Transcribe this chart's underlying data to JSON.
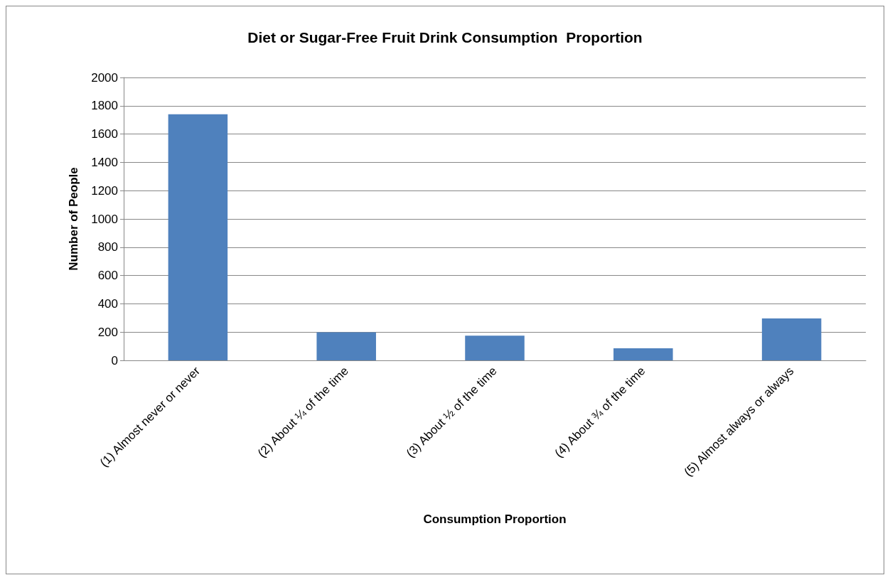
{
  "chart_data": {
    "type": "bar",
    "title": "Diet or Sugar-Free Fruit Drink Consumption  Proportion",
    "xlabel": "Consumption Proportion",
    "ylabel": "Number of People",
    "categories": [
      "(1) Almost never or never",
      "(2) About ¼ of the time",
      "(3) About ½ of the time",
      "(4) About ¾ of the time",
      "(5) Almost always or always"
    ],
    "values": [
      1740,
      198,
      175,
      85,
      297
    ],
    "color": "#4f81bd",
    "ylim": [
      0,
      2000
    ],
    "yticks": [
      0,
      200,
      400,
      600,
      800,
      1000,
      1200,
      1400,
      1600,
      1800,
      2000
    ],
    "grid": "y"
  }
}
